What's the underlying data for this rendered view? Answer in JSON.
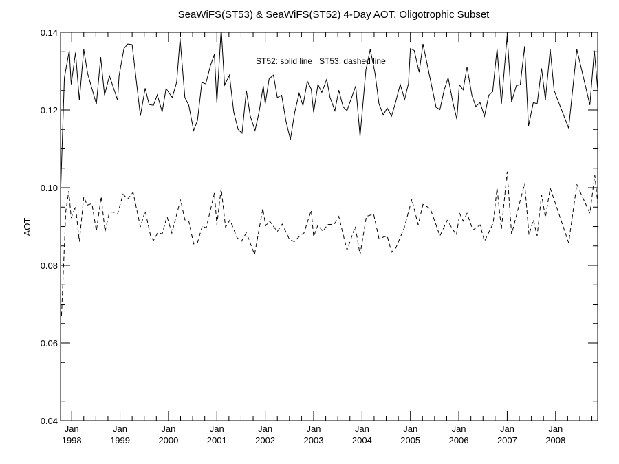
{
  "chart_data": {
    "type": "line",
    "title": "SeaWiFS(ST53) & SeaWiFS(ST52) 4-Day AOT, Oligotrophic Subset",
    "xlabel": "",
    "ylabel": "AOT",
    "legend_text": "ST52: solid line   ST53: dashed line",
    "xlim": [
      1997.77,
      2008.87
    ],
    "ylim": [
      0.04,
      0.14
    ],
    "y_ticks": [
      0.04,
      0.06,
      0.08,
      0.1,
      0.12,
      0.14
    ],
    "y_tick_labels": [
      "0.04",
      "0.06",
      "0.08",
      "0.10",
      "0.12",
      "0.14"
    ],
    "x_ticks": [
      1998,
      1999,
      2000,
      2001,
      2002,
      2003,
      2004,
      2005,
      2006,
      2007,
      2008
    ],
    "x_tick_month_label": "Jan",
    "x_tick_labels": [
      "1998",
      "1999",
      "2000",
      "2001",
      "2002",
      "2003",
      "2004",
      "2005",
      "2006",
      "2007",
      "2008"
    ],
    "grid": false,
    "series": [
      {
        "name": "ST52",
        "style": "solid",
        "x": [
          1997.77,
          1997.85,
          1997.95,
          1997.99,
          1998.08,
          1998.16,
          1998.25,
          1998.33,
          1998.51,
          1998.6,
          1998.68,
          1998.78,
          1998.95,
          1998.98,
          1999.08,
          1999.16,
          1999.25,
          1999.42,
          1999.52,
          1999.6,
          1999.69,
          1999.77,
          1999.87,
          1999.95,
          2000.08,
          2000.17,
          2000.24,
          2000.34,
          2000.42,
          2000.52,
          2000.6,
          2000.69,
          2000.77,
          2000.87,
          2000.95,
          2001.0,
          2001.09,
          2001.16,
          2001.26,
          2001.35,
          2001.44,
          2001.52,
          2001.61,
          2001.69,
          2001.79,
          2001.87,
          2001.96,
          2002.0,
          2002.08,
          2002.17,
          2002.25,
          2002.34,
          2002.43,
          2002.52,
          2002.61,
          2002.7,
          2002.78,
          2002.87,
          2002.95,
          2003.0,
          2003.09,
          2003.17,
          2003.27,
          2003.34,
          2003.44,
          2003.52,
          2003.61,
          2003.69,
          2003.87,
          2003.96,
          2004.08,
          2004.17,
          2004.27,
          2004.35,
          2004.44,
          2004.52,
          2004.61,
          2004.69,
          2004.79,
          2004.88,
          2004.96,
          2005.0,
          2005.08,
          2005.18,
          2005.26,
          2005.53,
          2005.61,
          2005.7,
          2005.78,
          2005.88,
          2005.96,
          2006.01,
          2006.09,
          2006.17,
          2006.27,
          2006.35,
          2006.44,
          2006.53,
          2006.62,
          2006.7,
          2006.79,
          2006.88,
          2007.0,
          2007.09,
          2007.19,
          2007.27,
          2007.36,
          2007.44,
          2007.54,
          2007.62,
          2007.71,
          2007.79,
          2007.89,
          2007.97,
          2008.27,
          2008.44,
          2008.71,
          2008.8,
          2008.87
        ],
        "values": [
          0.098,
          0.1283,
          0.1353,
          0.1266,
          0.1348,
          0.1225,
          0.1356,
          0.1294,
          0.1215,
          0.1336,
          0.1238,
          0.1288,
          0.1225,
          0.1288,
          0.1358,
          0.137,
          0.1368,
          0.1185,
          0.1256,
          0.1214,
          0.1212,
          0.1239,
          0.1195,
          0.1255,
          0.1232,
          0.1272,
          0.1384,
          0.1232,
          0.1212,
          0.1147,
          0.1173,
          0.1271,
          0.1267,
          0.1315,
          0.1343,
          0.1218,
          0.141,
          0.1264,
          0.129,
          0.1194,
          0.115,
          0.114,
          0.125,
          0.1185,
          0.1147,
          0.1193,
          0.1262,
          0.1216,
          0.128,
          0.129,
          0.1232,
          0.1238,
          0.117,
          0.1124,
          0.1194,
          0.1243,
          0.1211,
          0.1274,
          0.1254,
          0.1194,
          0.1266,
          0.1245,
          0.1279,
          0.1232,
          0.1198,
          0.1251,
          0.1208,
          0.1198,
          0.1262,
          0.1132,
          0.1303,
          0.1356,
          0.1294,
          0.1216,
          0.1187,
          0.1205,
          0.1184,
          0.1218,
          0.1266,
          0.1227,
          0.1268,
          0.1358,
          0.1353,
          0.1297,
          0.137,
          0.1207,
          0.1201,
          0.1253,
          0.1283,
          0.1218,
          0.1176,
          0.1265,
          0.1252,
          0.1311,
          0.1238,
          0.1209,
          0.1219,
          0.1184,
          0.1238,
          0.1247,
          0.1358,
          0.1215,
          0.1392,
          0.1221,
          0.1263,
          0.1265,
          0.1364,
          0.1158,
          0.1219,
          0.1216,
          0.1307,
          0.1226,
          0.1356,
          0.125,
          0.1153,
          0.1356,
          0.1213,
          0.1353,
          0.1253
        ]
      },
      {
        "name": "ST53",
        "style": "dashed",
        "x": [
          1997.79,
          1997.88,
          1997.94,
          1997.99,
          1998.08,
          1998.16,
          1998.25,
          1998.32,
          1998.42,
          1998.51,
          1998.61,
          1998.69,
          1998.78,
          1998.86,
          1998.95,
          1999.06,
          1999.16,
          1999.27,
          1999.42,
          1999.52,
          1999.63,
          1999.69,
          1999.78,
          1999.87,
          1999.97,
          2000.07,
          2000.25,
          2000.34,
          2000.42,
          2000.52,
          2000.6,
          2000.7,
          2000.78,
          2000.95,
          2001.0,
          2001.09,
          2001.18,
          2001.27,
          2001.42,
          2001.51,
          2001.61,
          2001.78,
          2001.95,
          2002.01,
          2002.09,
          2002.25,
          2002.35,
          2002.5,
          2002.6,
          2002.73,
          2002.8,
          2002.95,
          2003.0,
          2003.09,
          2003.19,
          2003.29,
          2003.43,
          2003.52,
          2003.69,
          2003.86,
          2003.96,
          2004.09,
          2004.24,
          2004.35,
          2004.52,
          2004.61,
          2004.7,
          2004.87,
          2005.03,
          2005.16,
          2005.26,
          2005.41,
          2005.61,
          2005.76,
          2005.95,
          2006.02,
          2006.09,
          2006.17,
          2006.29,
          2006.44,
          2006.53,
          2006.71,
          2006.79,
          2006.88,
          2007.0,
          2007.09,
          2007.36,
          2007.45,
          2007.54,
          2007.62,
          2007.71,
          2007.79,
          2007.89,
          2008.27,
          2008.44,
          2008.71,
          2008.81,
          2008.87
        ],
        "values": [
          0.067,
          0.094,
          0.0991,
          0.0922,
          0.0952,
          0.0861,
          0.0977,
          0.0955,
          0.0959,
          0.0888,
          0.0977,
          0.0887,
          0.0937,
          0.0937,
          0.0932,
          0.0983,
          0.0971,
          0.0988,
          0.0899,
          0.094,
          0.0876,
          0.0864,
          0.0884,
          0.0881,
          0.0926,
          0.0883,
          0.0969,
          0.0917,
          0.0914,
          0.0855,
          0.0858,
          0.0902,
          0.0896,
          0.0986,
          0.0904,
          0.0998,
          0.0898,
          0.0917,
          0.0871,
          0.0862,
          0.0884,
          0.0828,
          0.0946,
          0.0902,
          0.0914,
          0.0887,
          0.0906,
          0.0867,
          0.0861,
          0.0878,
          0.0883,
          0.0942,
          0.0874,
          0.0904,
          0.0887,
          0.0905,
          0.0906,
          0.0926,
          0.0839,
          0.09,
          0.0827,
          0.0926,
          0.0932,
          0.0869,
          0.0876,
          0.0834,
          0.0845,
          0.0896,
          0.097,
          0.0904,
          0.0957,
          0.0946,
          0.0876,
          0.0916,
          0.0878,
          0.0933,
          0.0914,
          0.0934,
          0.0891,
          0.0904,
          0.0862,
          0.0908,
          0.0999,
          0.0893,
          0.1041,
          0.088,
          0.1011,
          0.0878,
          0.0917,
          0.0876,
          0.0982,
          0.0923,
          0.0999,
          0.0858,
          0.1008,
          0.0934,
          0.1032,
          0.0961
        ]
      }
    ]
  }
}
